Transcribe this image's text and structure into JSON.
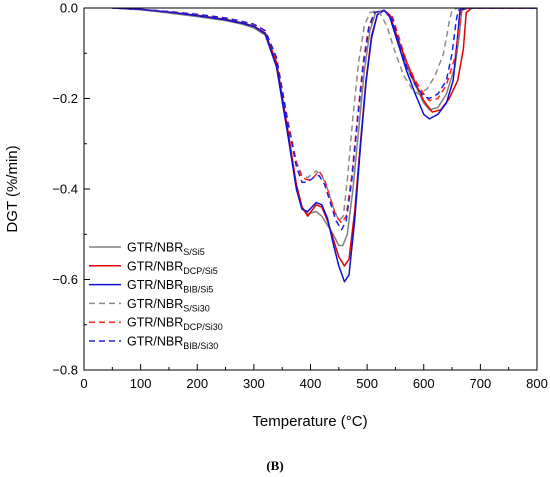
{
  "chart_data": {
    "type": "line",
    "title": "",
    "xlabel": "Temperature (°C)",
    "ylabel": "DGT (%/min)",
    "xlim": [
      0,
      800
    ],
    "ylim": [
      -0.8,
      0.0
    ],
    "x_ticks": [
      0,
      100,
      200,
      300,
      400,
      500,
      600,
      700,
      800
    ],
    "y_ticks": [
      0.0,
      -0.2,
      -0.4,
      -0.6,
      -0.8
    ],
    "x_tick_labels": [
      "0",
      "100",
      "200",
      "300",
      "400",
      "500",
      "600",
      "700",
      "800"
    ],
    "y_tick_labels": [
      "0.0",
      "−0.2",
      "−0.4",
      "−0.6",
      "−0.8"
    ],
    "grid": false,
    "legend_position": "lower-left",
    "panel_label": "(B)",
    "series": [
      {
        "name": "GTR/NBR",
        "name_sub": "S/Si5",
        "color": "#808080",
        "dash": "solid",
        "points": [
          [
            50,
            0
          ],
          [
            100,
            -0.004
          ],
          [
            150,
            -0.011
          ],
          [
            200,
            -0.019
          ],
          [
            250,
            -0.028
          ],
          [
            280,
            -0.036
          ],
          [
            300,
            -0.044
          ],
          [
            320,
            -0.06
          ],
          [
            340,
            -0.13
          ],
          [
            360,
            -0.28
          ],
          [
            375,
            -0.39
          ],
          [
            385,
            -0.44
          ],
          [
            395,
            -0.455
          ],
          [
            410,
            -0.45
          ],
          [
            420,
            -0.46
          ],
          [
            430,
            -0.48
          ],
          [
            440,
            -0.5
          ],
          [
            450,
            -0.525
          ],
          [
            457,
            -0.525
          ],
          [
            465,
            -0.5
          ],
          [
            475,
            -0.4
          ],
          [
            485,
            -0.27
          ],
          [
            495,
            -0.14
          ],
          [
            505,
            -0.05
          ],
          [
            515,
            -0.01
          ],
          [
            530,
            -0.005
          ],
          [
            540,
            -0.02
          ],
          [
            555,
            -0.08
          ],
          [
            570,
            -0.13
          ],
          [
            585,
            -0.17
          ],
          [
            600,
            -0.21
          ],
          [
            610,
            -0.225
          ],
          [
            625,
            -0.22
          ],
          [
            640,
            -0.19
          ],
          [
            655,
            -0.13
          ],
          [
            663,
            -0.06
          ],
          [
            667,
            -0.005
          ],
          [
            680,
            0
          ],
          [
            800,
            0
          ]
        ]
      },
      {
        "name": "GTR/NBR",
        "name_sub": "DCP/Si5",
        "color": "#e00000",
        "dash": "solid",
        "points": [
          [
            50,
            0
          ],
          [
            100,
            -0.003
          ],
          [
            150,
            -0.009
          ],
          [
            200,
            -0.016
          ],
          [
            250,
            -0.025
          ],
          [
            280,
            -0.033
          ],
          [
            300,
            -0.04
          ],
          [
            320,
            -0.055
          ],
          [
            340,
            -0.12
          ],
          [
            360,
            -0.27
          ],
          [
            375,
            -0.39
          ],
          [
            385,
            -0.44
          ],
          [
            395,
            -0.46
          ],
          [
            410,
            -0.435
          ],
          [
            420,
            -0.44
          ],
          [
            430,
            -0.47
          ],
          [
            440,
            -0.51
          ],
          [
            450,
            -0.55
          ],
          [
            460,
            -0.57
          ],
          [
            468,
            -0.555
          ],
          [
            478,
            -0.45
          ],
          [
            488,
            -0.3
          ],
          [
            498,
            -0.16
          ],
          [
            508,
            -0.06
          ],
          [
            518,
            -0.015
          ],
          [
            530,
            -0.005
          ],
          [
            540,
            -0.015
          ],
          [
            555,
            -0.07
          ],
          [
            570,
            -0.12
          ],
          [
            585,
            -0.165
          ],
          [
            600,
            -0.205
          ],
          [
            615,
            -0.23
          ],
          [
            630,
            -0.225
          ],
          [
            645,
            -0.2
          ],
          [
            660,
            -0.16
          ],
          [
            670,
            -0.09
          ],
          [
            675,
            -0.01
          ],
          [
            685,
            0
          ],
          [
            800,
            0
          ]
        ]
      },
      {
        "name": "GTR/NBR",
        "name_sub": "BIB/Si5",
        "color": "#1010d0",
        "dash": "solid",
        "points": [
          [
            50,
            0
          ],
          [
            100,
            -0.003
          ],
          [
            150,
            -0.009
          ],
          [
            200,
            -0.017
          ],
          [
            250,
            -0.026
          ],
          [
            280,
            -0.034
          ],
          [
            300,
            -0.041
          ],
          [
            320,
            -0.057
          ],
          [
            340,
            -0.13
          ],
          [
            360,
            -0.28
          ],
          [
            375,
            -0.4
          ],
          [
            385,
            -0.445
          ],
          [
            395,
            -0.45
          ],
          [
            410,
            -0.43
          ],
          [
            420,
            -0.435
          ],
          [
            430,
            -0.465
          ],
          [
            440,
            -0.52
          ],
          [
            450,
            -0.57
          ],
          [
            460,
            -0.605
          ],
          [
            468,
            -0.59
          ],
          [
            478,
            -0.47
          ],
          [
            488,
            -0.31
          ],
          [
            498,
            -0.165
          ],
          [
            508,
            -0.065
          ],
          [
            518,
            -0.015
          ],
          [
            530,
            -0.005
          ],
          [
            540,
            -0.02
          ],
          [
            555,
            -0.08
          ],
          [
            570,
            -0.14
          ],
          [
            585,
            -0.19
          ],
          [
            600,
            -0.235
          ],
          [
            610,
            -0.245
          ],
          [
            625,
            -0.235
          ],
          [
            640,
            -0.21
          ],
          [
            652,
            -0.16
          ],
          [
            660,
            -0.06
          ],
          [
            664,
            -0.005
          ],
          [
            675,
            0
          ],
          [
            800,
            0
          ]
        ]
      },
      {
        "name": "GTR/NBR",
        "name_sub": "S/Si30",
        "color": "#8c8c8c",
        "dash": "dashed",
        "points": [
          [
            50,
            0
          ],
          [
            100,
            -0.003
          ],
          [
            150,
            -0.008
          ],
          [
            200,
            -0.014
          ],
          [
            250,
            -0.022
          ],
          [
            280,
            -0.03
          ],
          [
            300,
            -0.036
          ],
          [
            320,
            -0.05
          ],
          [
            340,
            -0.11
          ],
          [
            360,
            -0.25
          ],
          [
            375,
            -0.34
          ],
          [
            385,
            -0.37
          ],
          [
            395,
            -0.375
          ],
          [
            410,
            -0.36
          ],
          [
            420,
            -0.37
          ],
          [
            430,
            -0.4
          ],
          [
            440,
            -0.44
          ],
          [
            450,
            -0.47
          ],
          [
            458,
            -0.46
          ],
          [
            465,
            -0.38
          ],
          [
            475,
            -0.24
          ],
          [
            485,
            -0.12
          ],
          [
            495,
            -0.04
          ],
          [
            505,
            -0.01
          ],
          [
            520,
            -0.005
          ],
          [
            535,
            -0.04
          ],
          [
            550,
            -0.1
          ],
          [
            565,
            -0.15
          ],
          [
            580,
            -0.18
          ],
          [
            590,
            -0.19
          ],
          [
            605,
            -0.18
          ],
          [
            620,
            -0.15
          ],
          [
            635,
            -0.1
          ],
          [
            645,
            -0.03
          ],
          [
            650,
            -0.005
          ],
          [
            660,
            0
          ],
          [
            800,
            0
          ]
        ]
      },
      {
        "name": "GTR/NBR",
        "name_sub": "DCP/Si30",
        "color": "#ff2020",
        "dash": "dashed",
        "points": [
          [
            50,
            0
          ],
          [
            100,
            -0.003
          ],
          [
            150,
            -0.008
          ],
          [
            200,
            -0.014
          ],
          [
            250,
            -0.022
          ],
          [
            280,
            -0.03
          ],
          [
            300,
            -0.036
          ],
          [
            320,
            -0.05
          ],
          [
            340,
            -0.11
          ],
          [
            360,
            -0.25
          ],
          [
            375,
            -0.34
          ],
          [
            385,
            -0.375
          ],
          [
            395,
            -0.38
          ],
          [
            405,
            -0.375
          ],
          [
            415,
            -0.36
          ],
          [
            425,
            -0.38
          ],
          [
            435,
            -0.42
          ],
          [
            445,
            -0.46
          ],
          [
            455,
            -0.475
          ],
          [
            463,
            -0.46
          ],
          [
            473,
            -0.37
          ],
          [
            483,
            -0.24
          ],
          [
            493,
            -0.12
          ],
          [
            503,
            -0.04
          ],
          [
            513,
            -0.01
          ],
          [
            530,
            -0.005
          ],
          [
            545,
            -0.02
          ],
          [
            555,
            -0.06
          ],
          [
            570,
            -0.12
          ],
          [
            585,
            -0.16
          ],
          [
            600,
            -0.19
          ],
          [
            610,
            -0.205
          ],
          [
            625,
            -0.2
          ],
          [
            640,
            -0.17
          ],
          [
            655,
            -0.11
          ],
          [
            663,
            -0.04
          ],
          [
            667,
            -0.005
          ],
          [
            680,
            0
          ],
          [
            800,
            0
          ]
        ]
      },
      {
        "name": "GTR/NBR",
        "name_sub": "BIB/Si30",
        "color": "#2020e0",
        "dash": "dashed",
        "points": [
          [
            50,
            0
          ],
          [
            100,
            -0.003
          ],
          [
            150,
            -0.008
          ],
          [
            200,
            -0.014
          ],
          [
            250,
            -0.022
          ],
          [
            280,
            -0.03
          ],
          [
            300,
            -0.036
          ],
          [
            320,
            -0.05
          ],
          [
            340,
            -0.11
          ],
          [
            360,
            -0.255
          ],
          [
            375,
            -0.35
          ],
          [
            385,
            -0.385
          ],
          [
            395,
            -0.385
          ],
          [
            405,
            -0.375
          ],
          [
            415,
            -0.37
          ],
          [
            425,
            -0.39
          ],
          [
            435,
            -0.43
          ],
          [
            445,
            -0.47
          ],
          [
            455,
            -0.49
          ],
          [
            463,
            -0.47
          ],
          [
            473,
            -0.38
          ],
          [
            483,
            -0.25
          ],
          [
            493,
            -0.13
          ],
          [
            503,
            -0.045
          ],
          [
            513,
            -0.01
          ],
          [
            530,
            -0.005
          ],
          [
            545,
            -0.025
          ],
          [
            555,
            -0.07
          ],
          [
            570,
            -0.13
          ],
          [
            585,
            -0.17
          ],
          [
            600,
            -0.195
          ],
          [
            610,
            -0.2
          ],
          [
            625,
            -0.19
          ],
          [
            640,
            -0.16
          ],
          [
            650,
            -0.1
          ],
          [
            657,
            -0.03
          ],
          [
            661,
            -0.005
          ],
          [
            670,
            0
          ],
          [
            800,
            0
          ]
        ]
      }
    ]
  }
}
